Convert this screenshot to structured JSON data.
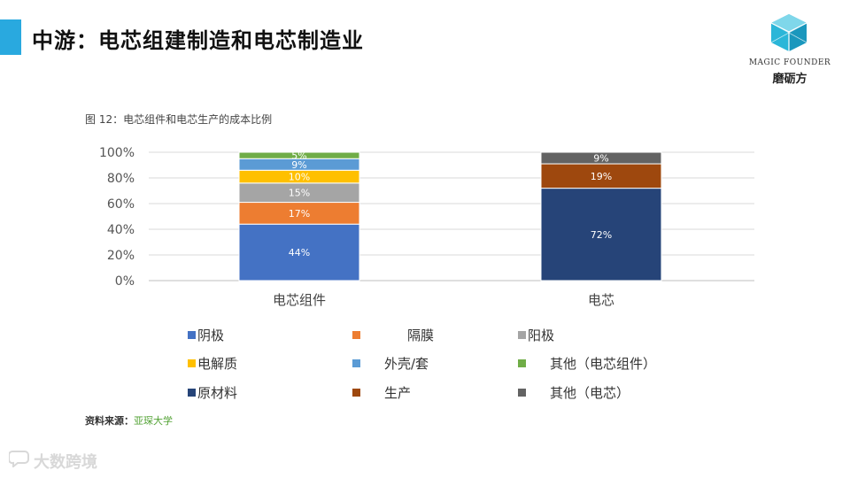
{
  "slide": {
    "title": "中游：电芯组建制造和电芯制造业",
    "accent_color": "#29a9df"
  },
  "logo": {
    "icon": "cube-logo-icon",
    "text_en": "MAGIC FOUNDER",
    "text_cn": "磨砺方",
    "color": "#2bb6d8"
  },
  "figure_caption": "图 12：电芯组件和电芯生产的成本比例",
  "chart_data": {
    "type": "bar",
    "stacked": true,
    "categories": [
      "电芯组件",
      "电芯"
    ],
    "yticks": [
      "0%",
      "20%",
      "40%",
      "60%",
      "80%",
      "100%"
    ],
    "ylim": [
      0,
      100
    ],
    "grid": true,
    "legend_position": "bottom",
    "series": [
      {
        "name": "阴极",
        "color": "#4472c4",
        "values": [
          44,
          0
        ],
        "labels": [
          "44%",
          ""
        ],
        "label_color": "#ffffff"
      },
      {
        "name": "隔膜",
        "color": "#ed7d31",
        "values": [
          17,
          0
        ],
        "labels": [
          "17%",
          ""
        ],
        "label_color": "#ffffff"
      },
      {
        "name": "阳极",
        "color": "#a5a5a5",
        "values": [
          15,
          0
        ],
        "labels": [
          "15%",
          ""
        ],
        "label_color": "#ffffff"
      },
      {
        "name": "电解质",
        "color": "#ffc000",
        "values": [
          10,
          0
        ],
        "labels": [
          "10%",
          ""
        ],
        "label_color": "#ffffff"
      },
      {
        "name": "外壳/套",
        "color": "#5b9bd5",
        "values": [
          9,
          0
        ],
        "labels": [
          "9%",
          ""
        ],
        "label_color": "#ffffff"
      },
      {
        "name": "其他（电芯组件）",
        "color": "#70ad47",
        "values": [
          5,
          0
        ],
        "labels": [
          "5%",
          ""
        ],
        "label_color": "#ffffff"
      },
      {
        "name": "原材料",
        "color": "#264478",
        "values": [
          0,
          72
        ],
        "labels": [
          "",
          "72%"
        ],
        "label_color": "#ffffff"
      },
      {
        "name": "生产",
        "color": "#9e480e",
        "values": [
          0,
          19
        ],
        "labels": [
          "",
          "19%"
        ],
        "label_color": "#ffffff"
      },
      {
        "name": "其他（电芯）",
        "color": "#636363",
        "values": [
          0,
          9
        ],
        "labels": [
          "",
          "9%"
        ],
        "label_color": "#ffffff"
      }
    ]
  },
  "source": {
    "label": "资料来源：",
    "value": "亚琛大学"
  },
  "watermark": {
    "text": "大数跨境",
    "icon": "chat-bubble-icon"
  }
}
